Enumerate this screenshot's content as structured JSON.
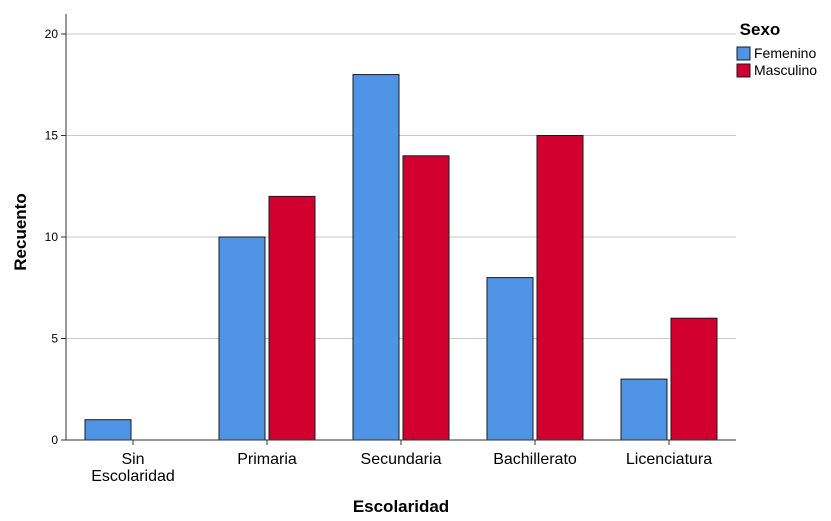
{
  "chart_data": {
    "type": "bar",
    "categories": [
      [
        "Sin",
        "Escolaridad"
      ],
      [
        "Primaria"
      ],
      [
        "Secundaria"
      ],
      [
        "Bachillerato"
      ],
      [
        "Licenciatura"
      ]
    ],
    "series": [
      {
        "name": "Femenino",
        "values": [
          1,
          10,
          18,
          8,
          3
        ],
        "color": "#5094e5"
      },
      {
        "name": "Masculino",
        "values": [
          0,
          12,
          14,
          15,
          6
        ],
        "color": "#d2002f"
      }
    ],
    "xlabel": "Escolaridad",
    "ylabel": "Recuento",
    "legend_title": "Sexo",
    "legend_position": "top-right",
    "ylim": [
      0,
      20
    ],
    "yticks": [
      0,
      5,
      10,
      15,
      20
    ],
    "grid": true,
    "grid_color": "#c8c8c8",
    "bar_border_color": "#1a1a1a"
  }
}
